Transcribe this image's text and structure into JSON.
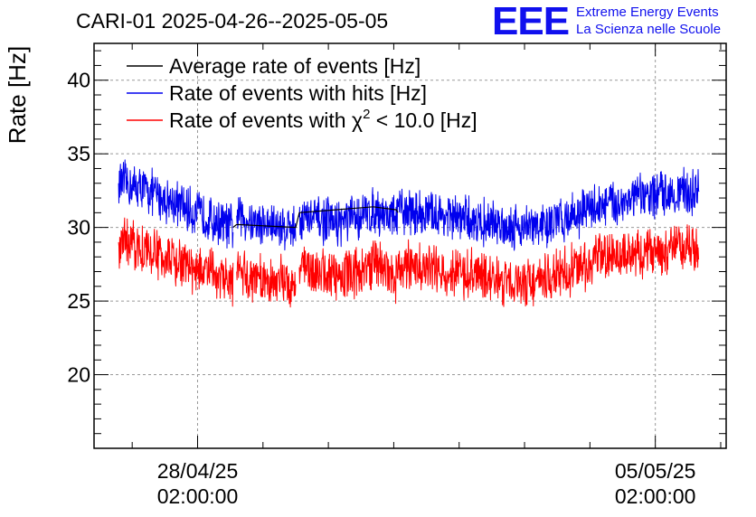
{
  "header": {
    "title": "CARI-01 2025-04-26--2025-05-05",
    "logo_text": "EEE",
    "logo_line1": "Extreme Energy Events",
    "logo_line2": "La Scienza nelle Scuole"
  },
  "colors": {
    "average": "#000000",
    "hits": "#0000ee",
    "chi2": "#ff0000",
    "logo": "#1010ee",
    "grid": "#999999"
  },
  "chart_data": {
    "type": "line",
    "ylabel": "Rate [Hz]",
    "ylim": [
      15,
      42.5
    ],
    "yticks": [
      20,
      25,
      30,
      35,
      40
    ],
    "xlim": [
      "2025-04-26 12:00",
      "2025-05-06 04:00"
    ],
    "xticks": [
      {
        "date": "2025-04-28 02:00",
        "line1": "28/04/25",
        "line2": "02:00:00"
      },
      {
        "date": "2025-05-05 02:00",
        "line1": "05/05/25",
        "line2": "02:00:00"
      }
    ],
    "grid": true,
    "legend_position": "top-left",
    "legend": [
      {
        "key": "average",
        "label": "Average rate of events [Hz]"
      },
      {
        "key": "hits",
        "label": "Rate of events with hits [Hz]"
      },
      {
        "key": "chi2",
        "label_before": "Rate of events with χ",
        "label_sup": "2",
        "label_after": " < 10.0 [Hz]"
      }
    ],
    "series": [
      {
        "name": "Rate of events with hits [Hz]",
        "key": "hits",
        "noise_amplitude": 1.5,
        "points": [
          [
            "2025-04-26 21:00",
            33.0
          ],
          [
            "2025-04-27 06:00",
            32.6
          ],
          [
            "2025-04-27 18:00",
            31.6
          ],
          [
            "2025-04-28 06:00",
            30.6
          ],
          [
            "2025-04-28 15:00",
            30.0
          ],
          [
            "2025-04-28 15:40",
            null
          ],
          [
            "2025-04-28 16:20",
            30.8
          ],
          [
            "2025-04-29 02:00",
            30.2
          ],
          [
            "2025-04-29 14:00",
            30.0
          ],
          [
            "2025-04-29 14:40",
            null
          ],
          [
            "2025-04-29 15:20",
            30.7
          ],
          [
            "2025-04-30 06:00",
            30.3
          ],
          [
            "2025-04-30 18:00",
            31.0
          ],
          [
            "2025-04-30 18:30",
            31.2
          ],
          [
            "2025-05-01 03:00",
            30.6
          ],
          [
            "2025-05-01 03:30",
            31.2
          ],
          [
            "2025-05-02 06:00",
            30.5
          ],
          [
            "2025-05-02 16:00",
            30.2
          ],
          [
            "2025-05-03 08:00",
            30.0
          ],
          [
            "2025-05-04 04:00",
            31.4
          ],
          [
            "2025-05-05 06:00",
            32.4
          ],
          [
            "2025-05-05 18:00",
            32.4
          ]
        ]
      },
      {
        "name": "Rate of events with χ2 < 10.0 [Hz]",
        "key": "chi2",
        "noise_amplitude": 1.6,
        "points": [
          [
            "2025-04-26 21:00",
            29.0
          ],
          [
            "2025-04-27 06:00",
            28.6
          ],
          [
            "2025-04-27 18:00",
            27.6
          ],
          [
            "2025-04-28 06:00",
            26.9
          ],
          [
            "2025-04-28 15:00",
            26.2
          ],
          [
            "2025-04-28 15:40",
            null
          ],
          [
            "2025-04-28 16:20",
            27.0
          ],
          [
            "2025-04-29 02:00",
            26.4
          ],
          [
            "2025-04-29 14:00",
            26.3
          ],
          [
            "2025-04-29 14:40",
            null
          ],
          [
            "2025-04-29 15:20",
            27.3
          ],
          [
            "2025-04-30 06:00",
            26.7
          ],
          [
            "2025-04-30 18:00",
            27.3
          ],
          [
            "2025-04-30 18:30",
            28.0
          ],
          [
            "2025-05-01 03:00",
            26.5
          ],
          [
            "2025-05-01 03:30",
            27.4
          ],
          [
            "2025-05-02 06:00",
            26.8
          ],
          [
            "2025-05-02 16:00",
            26.4
          ],
          [
            "2025-05-03 08:00",
            26.3
          ],
          [
            "2025-05-04 04:00",
            27.8
          ],
          [
            "2025-05-05 06:00",
            28.6
          ],
          [
            "2025-05-05 18:00",
            28.6
          ]
        ]
      },
      {
        "name": "Average rate of events [Hz]",
        "key": "average",
        "noise_amplitude": 0,
        "points": [
          [
            "2025-04-28 15:00",
            30.0
          ],
          [
            "2025-04-28 16:20",
            30.2
          ],
          [
            "2025-04-29 14:00",
            30.0
          ],
          [
            "2025-04-29 15:20",
            31.0
          ],
          [
            "2025-04-30 18:30",
            31.4
          ],
          [
            "2025-05-01 03:00",
            31.2
          ],
          [
            "2025-05-01 03:30",
            31.0
          ]
        ]
      }
    ]
  }
}
